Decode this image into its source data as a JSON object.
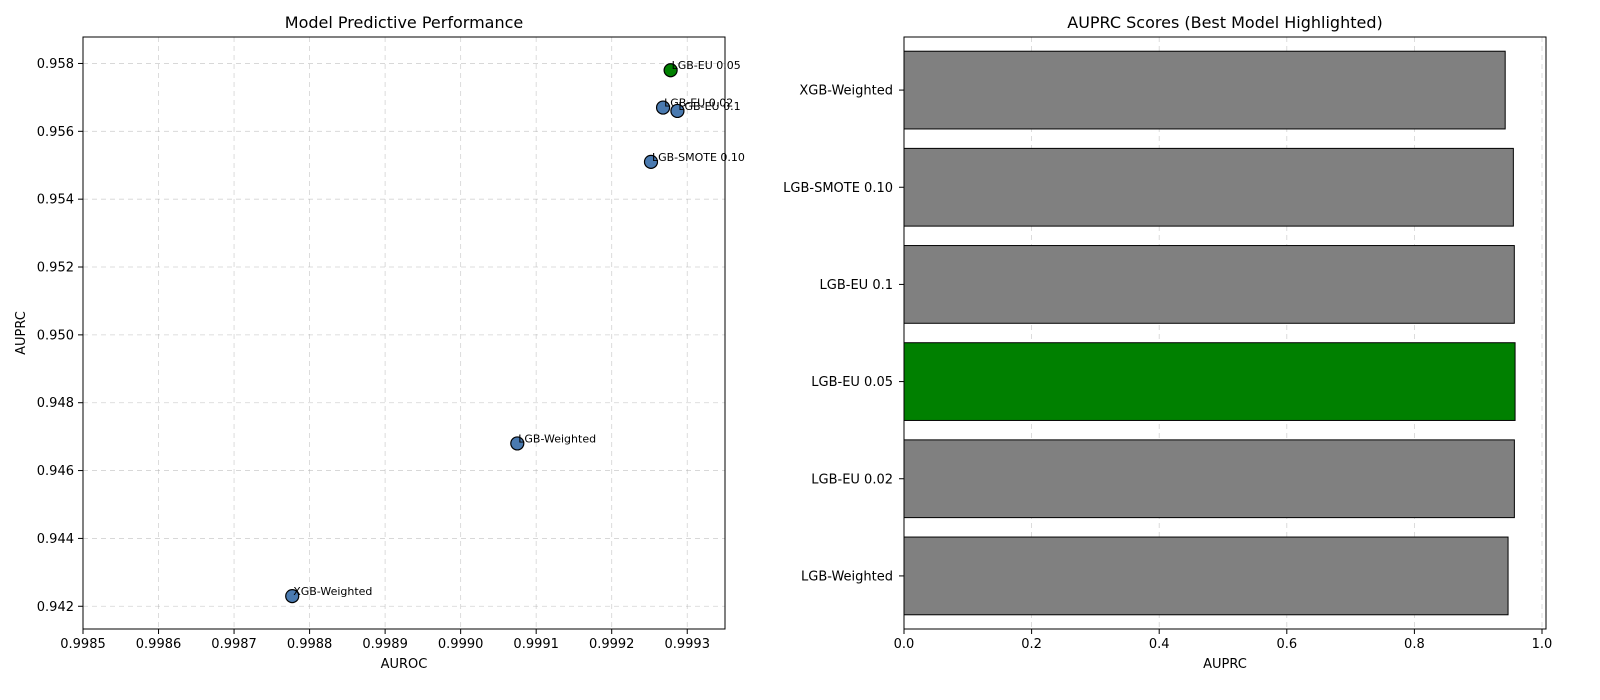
{
  "chart_data": [
    {
      "type": "scatter",
      "title": "Model Predictive Performance",
      "xlabel": "AUROC",
      "ylabel": "AUPRC",
      "xlim": [
        0.9985,
        0.99935
      ],
      "ylim": [
        0.94133,
        0.95878
      ],
      "xticks": [
        "0.9985",
        "0.9986",
        "0.9987",
        "0.9988",
        "0.9989",
        "0.9990",
        "0.9991",
        "0.9992",
        "0.9993"
      ],
      "yticks": [
        "0.942",
        "0.944",
        "0.946",
        "0.948",
        "0.950",
        "0.952",
        "0.954",
        "0.956",
        "0.958"
      ],
      "grid": true,
      "points": [
        {
          "label": "XGB-Weighted",
          "x": 0.998777,
          "y": 0.9423,
          "highlight": false
        },
        {
          "label": "LGB-Weighted",
          "x": 0.999075,
          "y": 0.9468,
          "highlight": false
        },
        {
          "label": "LGB-SMOTE 0.10",
          "x": 0.999252,
          "y": 0.9551,
          "highlight": false
        },
        {
          "label": "LGB-EU 0.02",
          "x": 0.999268,
          "y": 0.9567,
          "highlight": false
        },
        {
          "label": "LGB-EU 0.1",
          "x": 0.999287,
          "y": 0.9566,
          "highlight": false
        },
        {
          "label": "LGB-EU 0.05",
          "x": 0.999278,
          "y": 0.9578,
          "highlight": true
        }
      ],
      "colors": {
        "default": "#4a7ab0",
        "highlight": "#008000"
      }
    },
    {
      "type": "bar",
      "orientation": "horizontal",
      "title": "AUPRC Scores (Best Model Highlighted)",
      "xlabel": "AUPRC",
      "ylabel": "",
      "xlim": [
        0,
        1.0
      ],
      "xticks": [
        "0.0",
        "0.2",
        "0.4",
        "0.6",
        "0.8",
        "1.0"
      ],
      "grid": true,
      "categories": [
        "LGB-Weighted",
        "LGB-EU 0.02",
        "LGB-EU 0.05",
        "LGB-EU 0.1",
        "LGB-SMOTE 0.10",
        "XGB-Weighted"
      ],
      "values": [
        0.9468,
        0.9567,
        0.9578,
        0.9566,
        0.9551,
        0.9423
      ],
      "highlight_index": 2,
      "colors": {
        "default": "#808080",
        "highlight": "#008000"
      }
    }
  ]
}
